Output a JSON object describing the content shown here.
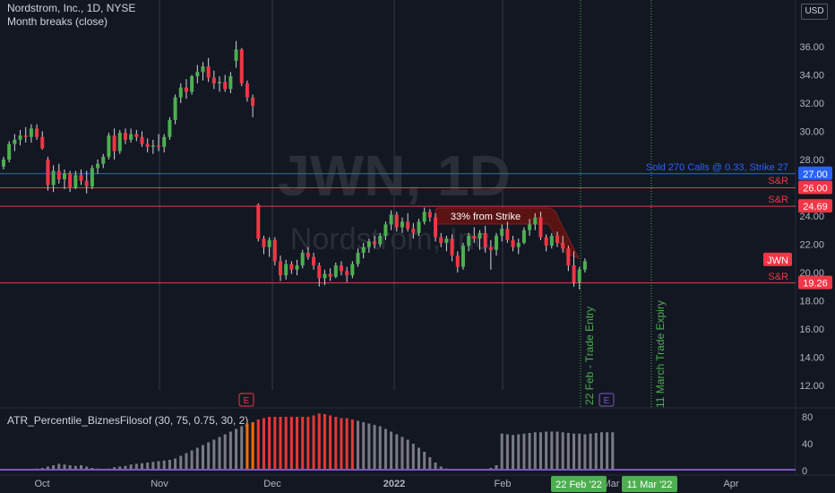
{
  "header": {
    "title": "Nordstrom, Inc., 1D, NYSE",
    "indicator": "Month breaks (close)",
    "currency": "USD"
  },
  "watermark": {
    "symbol": "JWN, 1D",
    "name": "Nordstrom, Inc."
  },
  "subpane": {
    "title": "ATR_Percentile_BiznesFilosof (30, 75, 0.75, 30, 2)"
  },
  "annotations": {
    "sold_calls": "Sold 270 Calls @ 0.33, Strike 27",
    "sr1": "S&R",
    "sr2": "S&R",
    "sr3": "S&R",
    "from_strike": "33% from Strike",
    "entry": "22 Feb - Trade Entry",
    "expiry": "11 March Trade Expiry",
    "earnings1": "E",
    "earnings2": "E"
  },
  "chart_data": [
    {
      "type": "candlestick",
      "title": "Nordstrom, Inc., 1D, NYSE",
      "y_axis": {
        "ticks": [
          "36.00",
          "34.00",
          "32.00",
          "30.00",
          "28.00",
          "26.00",
          "24.00",
          "22.00",
          "20.00",
          "18.00",
          "16.00",
          "14.00",
          "12.00"
        ],
        "ylim": [
          11,
          37.5
        ]
      },
      "x_axis": {
        "ticks": [
          "Oct",
          "Nov",
          "Dec",
          "2022",
          "Feb",
          "Mar",
          "Apr"
        ]
      },
      "price_labels": [
        {
          "text": "27.00",
          "value": 27.0,
          "color": "#2962ff"
        },
        {
          "text": "26.00",
          "value": 26.0,
          "color": "#f23645"
        },
        {
          "text": "24.69",
          "value": 24.69,
          "color": "#f23645"
        },
        {
          "text": "JWN",
          "value": 20.9,
          "color": "#f23645"
        },
        {
          "text": "19.26",
          "value": 19.26,
          "color": "#f23645"
        }
      ],
      "horizontal_lines": [
        {
          "value": 27.0,
          "color": "#2962ff"
        },
        {
          "value": 26.0,
          "color": "#f23645"
        },
        {
          "value": 24.69,
          "color": "#f23645"
        },
        {
          "value": 19.26,
          "color": "#f23645"
        }
      ],
      "x_axis_highlights": [
        "22 Feb '22",
        "11 Mar '22"
      ],
      "ohlc": [
        [
          27.5,
          28.2,
          27.3,
          28.0
        ],
        [
          28.0,
          29.3,
          27.8,
          29.1
        ],
        [
          29.1,
          29.8,
          28.6,
          29.4
        ],
        [
          29.4,
          30.1,
          29.0,
          29.7
        ],
        [
          29.7,
          30.3,
          29.2,
          29.6
        ],
        [
          29.6,
          30.5,
          29.2,
          30.2
        ],
        [
          30.2,
          30.5,
          29.4,
          29.6
        ],
        [
          29.6,
          30.0,
          28.7,
          28.8
        ],
        [
          28.0,
          28.2,
          25.8,
          26.2
        ],
        [
          26.2,
          27.6,
          25.7,
          27.2
        ],
        [
          27.2,
          27.7,
          26.3,
          26.6
        ],
        [
          26.6,
          27.3,
          25.9,
          27.0
        ],
        [
          27.0,
          27.2,
          25.7,
          26.0
        ],
        [
          26.0,
          27.2,
          25.9,
          26.9
        ],
        [
          26.9,
          27.3,
          26.2,
          26.5
        ],
        [
          26.5,
          27.2,
          25.6,
          26.1
        ],
        [
          26.1,
          27.6,
          25.9,
          27.4
        ],
        [
          27.4,
          28.0,
          27.0,
          27.7
        ],
        [
          27.7,
          28.4,
          27.4,
          28.2
        ],
        [
          28.2,
          29.9,
          28.0,
          29.7
        ],
        [
          29.7,
          30.2,
          28.0,
          28.6
        ],
        [
          28.6,
          30.1,
          28.4,
          29.9
        ],
        [
          29.9,
          30.2,
          29.1,
          29.4
        ],
        [
          29.4,
          30.2,
          29.2,
          29.8
        ],
        [
          29.8,
          30.1,
          29.3,
          29.6
        ],
        [
          29.6,
          30.0,
          28.9,
          29.1
        ],
        [
          29.1,
          29.5,
          28.5,
          28.9
        ],
        [
          28.9,
          29.4,
          28.4,
          29.0
        ],
        [
          29.0,
          29.8,
          28.6,
          28.9
        ],
        [
          28.9,
          29.8,
          28.5,
          29.6
        ],
        [
          29.6,
          31.0,
          29.4,
          30.8
        ],
        [
          30.8,
          32.6,
          30.5,
          32.4
        ],
        [
          32.4,
          33.4,
          32.0,
          33.1
        ],
        [
          33.1,
          33.7,
          32.3,
          32.8
        ],
        [
          32.8,
          34.0,
          32.6,
          33.9
        ],
        [
          33.9,
          34.7,
          33.4,
          34.2
        ],
        [
          34.2,
          34.9,
          33.6,
          34.6
        ],
        [
          34.6,
          35.2,
          33.5,
          33.8
        ],
        [
          33.8,
          34.3,
          33.0,
          33.4
        ],
        [
          33.4,
          33.9,
          32.8,
          33.5
        ],
        [
          33.5,
          34.0,
          32.8,
          33.0
        ],
        [
          33.0,
          34.2,
          32.7,
          33.9
        ],
        [
          35.0,
          36.4,
          34.5,
          35.8
        ],
        [
          35.8,
          35.9,
          33.2,
          33.4
        ],
        [
          33.4,
          33.6,
          32.1,
          32.4
        ],
        [
          32.4,
          32.6,
          31.0,
          31.8
        ],
        [
          24.8,
          24.9,
          22.2,
          22.4
        ],
        [
          22.4,
          22.6,
          21.3,
          21.8
        ],
        [
          21.8,
          22.5,
          21.1,
          22.3
        ],
        [
          22.3,
          22.5,
          20.5,
          20.8
        ],
        [
          20.8,
          21.2,
          19.4,
          19.8
        ],
        [
          19.8,
          20.9,
          19.5,
          20.6
        ],
        [
          20.6,
          20.8,
          19.9,
          20.2
        ],
        [
          20.2,
          20.9,
          19.8,
          20.5
        ],
        [
          20.5,
          21.6,
          20.3,
          21.4
        ],
        [
          21.4,
          21.8,
          20.9,
          21.1
        ],
        [
          21.1,
          21.4,
          20.2,
          20.5
        ],
        [
          20.5,
          20.7,
          19.0,
          19.6
        ],
        [
          19.6,
          20.2,
          19.1,
          19.9
        ],
        [
          19.9,
          20.3,
          19.4,
          19.7
        ],
        [
          19.7,
          20.7,
          19.6,
          20.5
        ],
        [
          20.5,
          20.8,
          19.8,
          20.1
        ],
        [
          20.1,
          20.4,
          19.3,
          19.8
        ],
        [
          19.8,
          20.8,
          19.6,
          20.6
        ],
        [
          20.6,
          21.7,
          20.4,
          21.4
        ],
        [
          21.4,
          22.1,
          21.0,
          21.8
        ],
        [
          21.8,
          22.4,
          21.4,
          22.2
        ],
        [
          22.2,
          22.6,
          21.7,
          22.0
        ],
        [
          22.0,
          22.8,
          21.8,
          22.6
        ],
        [
          22.6,
          23.6,
          22.3,
          23.4
        ],
        [
          23.4,
          24.4,
          23.0,
          24.1
        ],
        [
          24.1,
          24.3,
          22.9,
          23.2
        ],
        [
          23.2,
          23.9,
          22.8,
          23.6
        ],
        [
          23.6,
          24.2,
          22.9,
          23.1
        ],
        [
          23.1,
          23.5,
          22.4,
          22.8
        ],
        [
          22.8,
          23.8,
          22.6,
          23.6
        ],
        [
          23.6,
          24.6,
          23.4,
          24.3
        ],
        [
          24.3,
          24.5,
          23.6,
          23.9
        ],
        [
          23.9,
          24.2,
          22.2,
          22.5
        ],
        [
          22.5,
          22.8,
          21.8,
          22.1
        ],
        [
          22.1,
          22.6,
          21.5,
          22.4
        ],
        [
          22.4,
          22.7,
          20.8,
          21.2
        ],
        [
          21.2,
          21.5,
          20.0,
          20.4
        ],
        [
          20.4,
          22.1,
          20.2,
          21.9
        ],
        [
          21.9,
          22.8,
          21.5,
          22.6
        ],
        [
          22.6,
          23.2,
          22.1,
          22.4
        ],
        [
          22.4,
          23.0,
          21.6,
          22.8
        ],
        [
          22.8,
          23.3,
          21.4,
          21.8
        ],
        [
          21.8,
          22.3,
          20.2,
          21.6
        ],
        [
          21.6,
          22.8,
          21.2,
          22.6
        ],
        [
          22.6,
          23.4,
          22.2,
          23.1
        ],
        [
          23.1,
          23.6,
          22.1,
          22.3
        ],
        [
          22.3,
          22.6,
          21.5,
          21.8
        ],
        [
          21.8,
          22.4,
          21.3,
          22.1
        ],
        [
          22.1,
          23.2,
          22.0,
          23.0
        ],
        [
          23.0,
          23.8,
          22.6,
          23.4
        ],
        [
          23.4,
          24.2,
          23.0,
          23.9
        ],
        [
          23.9,
          24.3,
          22.3,
          22.5
        ],
        [
          22.5,
          22.7,
          21.5,
          21.9
        ],
        [
          21.9,
          22.8,
          21.7,
          22.6
        ],
        [
          22.6,
          22.9,
          21.8,
          22.1
        ],
        [
          22.1,
          22.6,
          21.4,
          21.7
        ],
        [
          21.7,
          21.9,
          20.1,
          20.5
        ],
        [
          20.5,
          21.5,
          19.0,
          19.3
        ],
        [
          19.3,
          20.4,
          18.8,
          20.2
        ],
        [
          20.2,
          21.0,
          20.0,
          20.8
        ]
      ]
    },
    {
      "type": "bar",
      "title": "ATR_Percentile_BiznesFilosof (30, 75, 0.75, 30, 2)",
      "y_axis": {
        "ticks": [
          "80",
          "40",
          "0"
        ],
        "ylim": [
          0,
          88
        ]
      },
      "values": [
        2,
        2,
        2,
        2,
        2,
        2,
        3,
        4,
        6,
        8,
        10,
        9,
        8,
        7,
        8,
        6,
        4,
        3,
        2,
        3,
        5,
        6,
        7,
        9,
        10,
        11,
        12,
        13,
        14,
        15,
        16,
        18,
        22,
        26,
        30,
        34,
        38,
        42,
        46,
        50,
        54,
        58,
        62,
        66,
        70,
        72,
        76,
        78,
        80,
        80,
        80,
        80,
        80,
        80,
        80,
        80,
        82,
        85,
        84,
        82,
        80,
        78,
        78,
        76,
        74,
        72,
        70,
        68,
        66,
        62,
        58,
        54,
        50,
        46,
        40,
        34,
        28,
        20,
        12,
        6,
        3,
        2,
        2,
        2,
        2,
        2,
        2,
        2,
        4,
        8,
        55,
        54,
        53,
        54,
        55,
        56,
        57,
        57,
        58,
        58,
        58,
        57,
        56,
        55,
        55,
        54,
        55,
        56,
        57,
        57,
        57
      ],
      "colors": {
        "gray": "#787b86",
        "orange": "#ff6d00",
        "red": "#e53935"
      },
      "baseline_color": "#7e57c2"
    }
  ]
}
